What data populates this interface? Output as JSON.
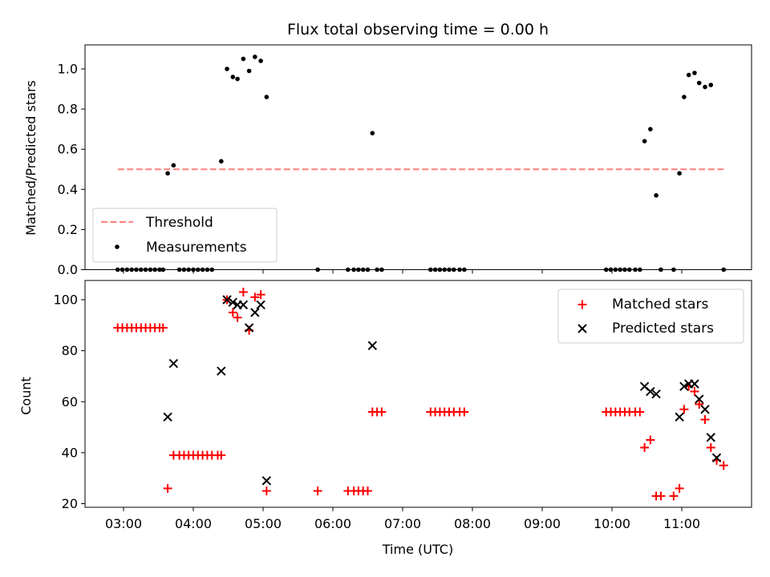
{
  "chart_data": [
    {
      "type": "scatter",
      "title": "Flux total observing time = 0.00 h",
      "xlabel": "",
      "ylabel": "Matched/Predicted stars",
      "xlim": [
        "02:34",
        "12:00"
      ],
      "ylim": [
        0,
        1.12
      ],
      "yticks": [
        0.0,
        0.2,
        0.4,
        0.6,
        0.8,
        1.0
      ],
      "ytick_labels": [
        "0.0",
        "0.2",
        "0.4",
        "0.6",
        "0.8",
        "1.0"
      ],
      "grid": false,
      "legend_position": "lower-left",
      "threshold": {
        "name": "Threshold",
        "color": "#ff7f7f",
        "style": "dashed",
        "y": 0.5,
        "x_range": [
          "02:55",
          "11:36"
        ]
      },
      "series": [
        {
          "name": "Measurements",
          "color": "#000000",
          "marker": "dot",
          "points": [
            [
              "02:55",
              0
            ],
            [
              "02:59",
              0
            ],
            [
              "03:03",
              0
            ],
            [
              "03:07",
              0
            ],
            [
              "03:11",
              0
            ],
            [
              "03:15",
              0
            ],
            [
              "03:19",
              0
            ],
            [
              "03:23",
              0
            ],
            [
              "03:27",
              0
            ],
            [
              "03:31",
              0
            ],
            [
              "03:34",
              0
            ],
            [
              "03:38",
              0.48
            ],
            [
              "03:43",
              0.52
            ],
            [
              "03:48",
              0
            ],
            [
              "03:52",
              0
            ],
            [
              "03:56",
              0
            ],
            [
              "04:00",
              0
            ],
            [
              "04:04",
              0
            ],
            [
              "04:08",
              0
            ],
            [
              "04:12",
              0
            ],
            [
              "04:16",
              0
            ],
            [
              "04:24",
              0.54
            ],
            [
              "04:29",
              1.0
            ],
            [
              "04:34",
              0.96
            ],
            [
              "04:38",
              0.95
            ],
            [
              "04:43",
              1.05
            ],
            [
              "04:48",
              0.99
            ],
            [
              "04:53",
              1.06
            ],
            [
              "04:58",
              1.04
            ],
            [
              "05:03",
              0.86
            ],
            [
              "05:47",
              0
            ],
            [
              "06:13",
              0
            ],
            [
              "06:18",
              0
            ],
            [
              "06:22",
              0
            ],
            [
              "06:26",
              0
            ],
            [
              "06:30",
              0
            ],
            [
              "06:34",
              0.68
            ],
            [
              "06:38",
              0
            ],
            [
              "06:42",
              0
            ],
            [
              "07:24",
              0
            ],
            [
              "07:28",
              0
            ],
            [
              "07:32",
              0
            ],
            [
              "07:36",
              0
            ],
            [
              "07:40",
              0
            ],
            [
              "07:44",
              0
            ],
            [
              "07:49",
              0
            ],
            [
              "07:53",
              0
            ],
            [
              "09:55",
              0
            ],
            [
              "09:59",
              0
            ],
            [
              "10:03",
              0
            ],
            [
              "10:07",
              0
            ],
            [
              "10:11",
              0
            ],
            [
              "10:15",
              0
            ],
            [
              "10:20",
              0
            ],
            [
              "10:24",
              0
            ],
            [
              "10:28",
              0.64
            ],
            [
              "10:33",
              0.7
            ],
            [
              "10:38",
              0.37
            ],
            [
              "10:42",
              0
            ],
            [
              "10:53",
              0
            ],
            [
              "10:58",
              0.48
            ],
            [
              "11:02",
              0.86
            ],
            [
              "11:06",
              0.97
            ],
            [
              "11:11",
              0.98
            ],
            [
              "11:15",
              0.93
            ],
            [
              "11:20",
              0.91
            ],
            [
              "11:25",
              0.92
            ],
            [
              "11:36",
              0
            ]
          ]
        }
      ]
    },
    {
      "type": "scatter",
      "title": "",
      "xlabel": "Time (UTC)",
      "ylabel": "Count",
      "xlim": [
        "02:34",
        "12:00"
      ],
      "ylim": [
        19,
        108
      ],
      "xticks": [
        "03:00",
        "04:00",
        "05:00",
        "06:00",
        "07:00",
        "08:00",
        "09:00",
        "10:00",
        "11:00"
      ],
      "yticks": [
        20,
        40,
        60,
        80,
        100
      ],
      "ytick_labels": [
        "20",
        "40",
        "60",
        "80",
        "100"
      ],
      "grid": false,
      "legend_position": "upper-right",
      "series": [
        {
          "name": "Matched stars",
          "color": "#ff0000",
          "marker": "plus",
          "points": [
            [
              "02:55",
              89
            ],
            [
              "02:59",
              89
            ],
            [
              "03:03",
              89
            ],
            [
              "03:07",
              89
            ],
            [
              "03:11",
              89
            ],
            [
              "03:15",
              89
            ],
            [
              "03:19",
              89
            ],
            [
              "03:23",
              89
            ],
            [
              "03:27",
              89
            ],
            [
              "03:31",
              89
            ],
            [
              "03:34",
              89
            ],
            [
              "03:38",
              26
            ],
            [
              "03:43",
              39
            ],
            [
              "03:48",
              39
            ],
            [
              "03:52",
              39
            ],
            [
              "03:56",
              39
            ],
            [
              "04:00",
              39
            ],
            [
              "04:04",
              39
            ],
            [
              "04:08",
              39
            ],
            [
              "04:12",
              39
            ],
            [
              "04:16",
              39
            ],
            [
              "04:21",
              39
            ],
            [
              "04:24",
              39
            ],
            [
              "04:29",
              100
            ],
            [
              "04:34",
              95
            ],
            [
              "04:38",
              93
            ],
            [
              "04:43",
              103
            ],
            [
              "04:48",
              88
            ],
            [
              "04:53",
              101
            ],
            [
              "04:58",
              102
            ],
            [
              "05:03",
              25
            ],
            [
              "05:47",
              25
            ],
            [
              "06:13",
              25
            ],
            [
              "06:18",
              25
            ],
            [
              "06:22",
              25
            ],
            [
              "06:26",
              25
            ],
            [
              "06:30",
              25
            ],
            [
              "06:34",
              56
            ],
            [
              "06:38",
              56
            ],
            [
              "06:42",
              56
            ],
            [
              "07:24",
              56
            ],
            [
              "07:28",
              56
            ],
            [
              "07:32",
              56
            ],
            [
              "07:36",
              56
            ],
            [
              "07:40",
              56
            ],
            [
              "07:44",
              56
            ],
            [
              "07:49",
              56
            ],
            [
              "07:53",
              56
            ],
            [
              "09:55",
              56
            ],
            [
              "09:59",
              56
            ],
            [
              "10:03",
              56
            ],
            [
              "10:07",
              56
            ],
            [
              "10:11",
              56
            ],
            [
              "10:15",
              56
            ],
            [
              "10:20",
              56
            ],
            [
              "10:24",
              56
            ],
            [
              "10:28",
              42
            ],
            [
              "10:33",
              45
            ],
            [
              "10:38",
              23
            ],
            [
              "10:42",
              23
            ],
            [
              "10:53",
              23
            ],
            [
              "10:58",
              26
            ],
            [
              "11:02",
              57
            ],
            [
              "11:06",
              66
            ],
            [
              "11:11",
              64
            ],
            [
              "11:15",
              59
            ],
            [
              "11:20",
              53
            ],
            [
              "11:25",
              42
            ],
            [
              "11:30",
              37
            ],
            [
              "11:36",
              35
            ]
          ]
        },
        {
          "name": "Predicted stars",
          "color": "#000000",
          "marker": "x",
          "points": [
            [
              "03:38",
              54
            ],
            [
              "03:43",
              75
            ],
            [
              "04:24",
              72
            ],
            [
              "04:29",
              100
            ],
            [
              "04:34",
              99
            ],
            [
              "04:38",
              98
            ],
            [
              "04:43",
              98
            ],
            [
              "04:48",
              89
            ],
            [
              "04:53",
              95
            ],
            [
              "04:58",
              98
            ],
            [
              "05:03",
              29
            ],
            [
              "06:34",
              82
            ],
            [
              "10:28",
              66
            ],
            [
              "10:33",
              64
            ],
            [
              "10:38",
              63
            ],
            [
              "10:58",
              54
            ],
            [
              "11:02",
              66
            ],
            [
              "11:06",
              67
            ],
            [
              "11:11",
              67
            ],
            [
              "11:15",
              61
            ],
            [
              "11:20",
              57
            ],
            [
              "11:25",
              46
            ],
            [
              "11:30",
              38
            ]
          ]
        }
      ]
    }
  ]
}
